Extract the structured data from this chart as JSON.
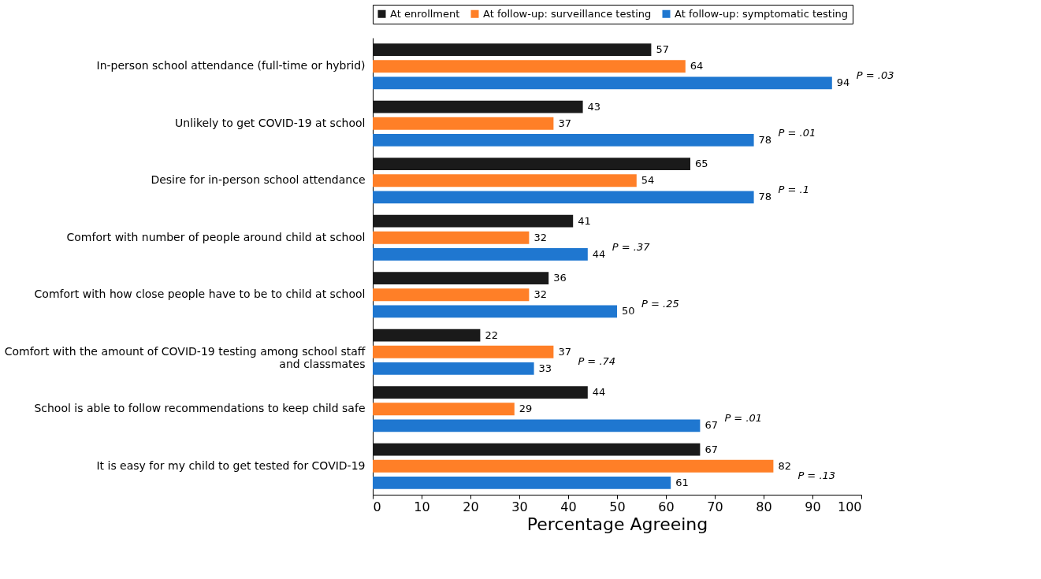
{
  "chart_data": {
    "type": "bar",
    "orientation": "horizontal",
    "xlabel": "Percentage Agreeing",
    "categories": [
      "In-person school attendance (full-time or hybrid)",
      "Unlikely to get COVID-19 at school",
      "Desire for in-person school attendance",
      "Comfort with number of people around child at school",
      "Comfort with how close people have to be to child at school",
      "Comfort with the amount of COVID-19 testing among school staff and classmates",
      "School is able to follow recommendations to keep child safe",
      "It is easy for my child to get tested for COVID-19"
    ],
    "series": [
      {
        "name": "At enrollment",
        "color": "#1a1a1a",
        "values": [
          57,
          43,
          65,
          41,
          36,
          22,
          44,
          67
        ]
      },
      {
        "name": "At follow-up: surveillance testing",
        "color": "#ff7f27",
        "values": [
          64,
          37,
          54,
          32,
          32,
          37,
          29,
          82
        ]
      },
      {
        "name": "At follow-up: symptomatic testing",
        "color": "#1f77d0",
        "values": [
          94,
          78,
          78,
          44,
          50,
          33,
          67,
          61
        ]
      }
    ],
    "xlim": [
      0,
      100
    ],
    "xticks": [
      0,
      10,
      20,
      30,
      40,
      50,
      60,
      70,
      80,
      90,
      100
    ],
    "data_labels": true,
    "legend": "top",
    "grid": false,
    "annotations": [
      "P = .03",
      "P = .01",
      "P = .1",
      "P = .37",
      "P = .25",
      "P = .74",
      "P = .01",
      "P = .13"
    ]
  }
}
